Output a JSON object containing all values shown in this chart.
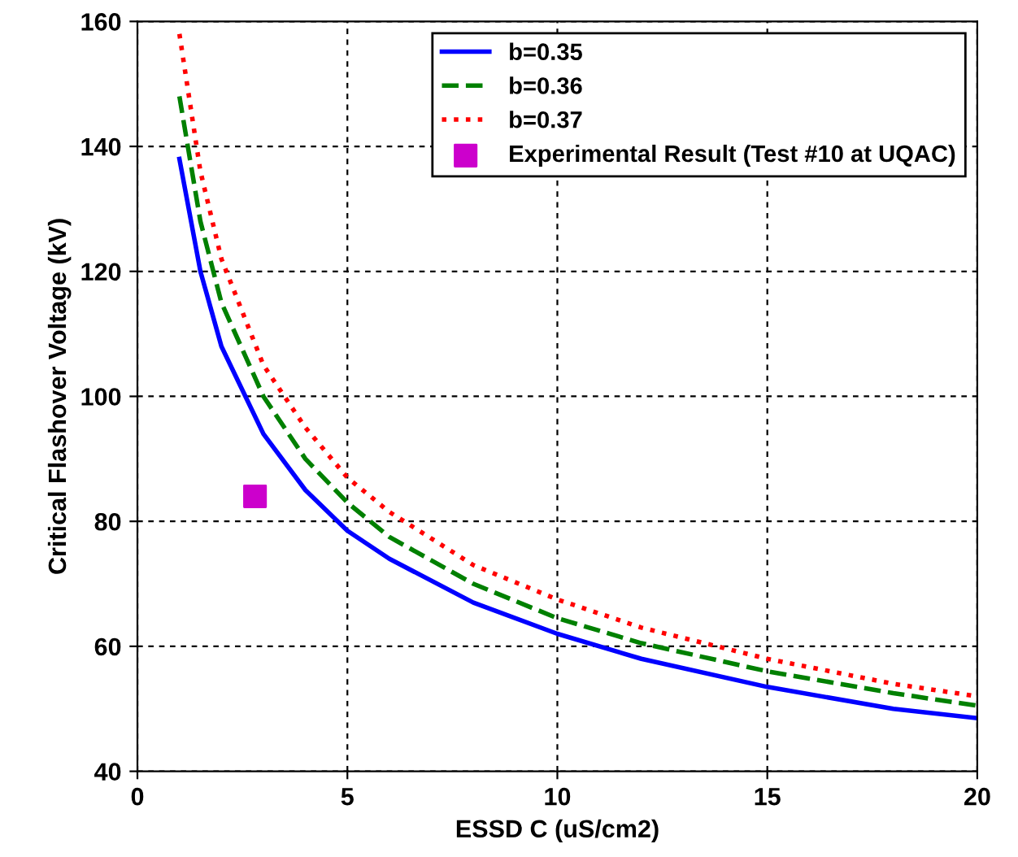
{
  "chart_data": {
    "type": "line",
    "xlabel": "ESSD C (uS/cm2)",
    "ylabel": "Critical Flashover Voltage (kV)",
    "xlim": [
      0,
      20
    ],
    "ylim": [
      40,
      160
    ],
    "xticks": [
      0,
      5,
      10,
      15,
      20
    ],
    "yticks": [
      40,
      60,
      80,
      100,
      120,
      140,
      160
    ],
    "grid": true,
    "legend": "top right",
    "series": [
      {
        "name": "b=0.35",
        "color": "#0000ff",
        "line_style": "solid",
        "x": [
          1,
          1.5,
          2,
          3,
          4,
          5,
          6,
          8,
          10,
          12,
          15,
          18,
          20
        ],
        "values": [
          138,
          120,
          108,
          94,
          85,
          78.5,
          74,
          67,
          62,
          58,
          53.5,
          50,
          48.5
        ]
      },
      {
        "name": "b=0.36",
        "color": "#008000",
        "line_style": "dashed",
        "x": [
          1,
          1.5,
          2,
          3,
          4,
          5,
          6,
          8,
          10,
          12,
          15,
          18,
          20
        ],
        "values": [
          148,
          128,
          115,
          100,
          90,
          83,
          77.5,
          70,
          64.5,
          60.5,
          56,
          52.5,
          50.5
        ]
      },
      {
        "name": "b=0.37",
        "color": "#ff0000",
        "line_style": "dotted",
        "x": [
          1,
          1.5,
          2,
          3,
          4,
          5,
          6,
          8,
          10,
          12,
          15,
          18,
          20
        ],
        "values": [
          158,
          136,
          122,
          105,
          95,
          87,
          81.5,
          73,
          67.5,
          63,
          58,
          54,
          52
        ]
      },
      {
        "name": "Experimental Result (Test #10 at UQAC)",
        "type": "scatter",
        "marker": "square",
        "color": "#cc00cc",
        "x": [
          2.8
        ],
        "values": [
          84
        ]
      }
    ]
  }
}
